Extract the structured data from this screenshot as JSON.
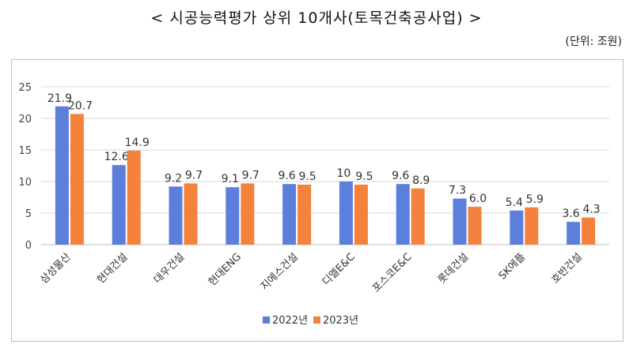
{
  "header": {
    "title": "< 시공능력평가 상위 10개사(토목건축공사업) >",
    "unit": "(단위: 조원)"
  },
  "colors": {
    "series_2022": "#5b7fdb",
    "series_2023": "#f4823c",
    "grid": "#d9d9d9"
  },
  "chart_data": {
    "type": "bar",
    "title": "< 시공능력평가 상위 10개사(토목건축공사업) >",
    "xlabel": "",
    "ylabel": "",
    "ylim": [
      0,
      25
    ],
    "yticks": [
      0,
      5,
      10,
      15,
      20,
      25
    ],
    "grid": true,
    "legend": "bottom",
    "categories": [
      "삼성물산",
      "현대건설",
      "대우건설",
      "현대ENG",
      "지에스건설",
      "디엘E&C",
      "포스코E&C",
      "롯데건설",
      "SK에플",
      "호반건설"
    ],
    "series": [
      {
        "name": "2022년",
        "values": [
          21.9,
          12.6,
          9.2,
          9.1,
          9.6,
          10,
          9.6,
          7.3,
          5.4,
          3.6
        ],
        "labels": [
          "21.9",
          "12.6",
          "9.2",
          "9.1",
          "9.6",
          "10",
          "9.6",
          "7.3",
          "5.4",
          "3.6"
        ]
      },
      {
        "name": "2023년",
        "values": [
          20.7,
          14.9,
          9.7,
          9.7,
          9.5,
          9.5,
          8.9,
          6.0,
          5.9,
          4.3
        ],
        "labels": [
          "20.7",
          "14.9",
          "9.7",
          "9.7",
          "9.5",
          "9.5",
          "8.9",
          "6.0",
          "5.9",
          "4.3"
        ]
      }
    ]
  }
}
